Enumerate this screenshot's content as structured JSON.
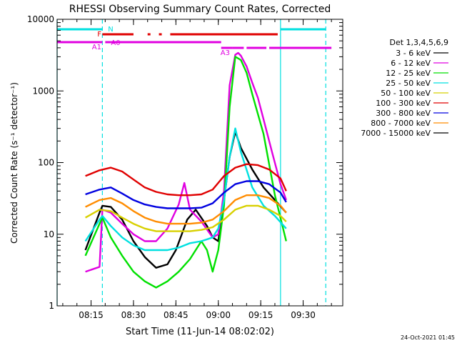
{
  "chart_data": {
    "type": "line",
    "title": "RHESSI Observing Summary Count Rates, Corrected",
    "xlabel": "Start Time (11-Jun-14 08:02:02)",
    "ylabel": "Corrected Count Rate (s⁻¹ detector⁻¹)",
    "timestamp": "24-Oct-2021 01:45",
    "y_scale": "log",
    "xlim": [
      "08:03",
      "09:44"
    ],
    "ylim": [
      1,
      10000
    ],
    "x_ticks": [
      "08:15",
      "08:30",
      "08:45",
      "09:00",
      "09:15",
      "09:30"
    ],
    "y_ticks": [
      "1",
      "10",
      "100",
      "1000",
      "10000"
    ],
    "legend": {
      "header": "Det 1,3,4,5,6,9",
      "placement": "right",
      "entries": [
        {
          "label": "3 - 6 keV",
          "color": "#000000"
        },
        {
          "label": "6 - 12 keV",
          "color": "#e000e0"
        },
        {
          "label": "12 - 25 keV",
          "color": "#00e000"
        },
        {
          "label": "25 - 50 keV",
          "color": "#00e0e0"
        },
        {
          "label": "50 - 100 keV",
          "color": "#d8d000"
        },
        {
          "label": "100 - 300 keV",
          "color": "#e00000"
        },
        {
          "label": "300 - 800 keV",
          "color": "#0000e0"
        },
        {
          "label": "800 - 7000 keV",
          "color": "#ff8c00"
        },
        {
          "label": "7000 - 15000 keV",
          "color": "#000000"
        }
      ]
    },
    "flag_bars": [
      {
        "label": "N",
        "color": "#00e0e0",
        "segments": [
          [
            "08:03",
            "08:19"
          ],
          [
            "09:22",
            "09:38"
          ]
        ]
      },
      {
        "label": "F",
        "color": "#e00000",
        "segments": [
          [
            "08:19",
            "08:30"
          ],
          [
            "08:35",
            "08:36"
          ],
          [
            "08:39",
            "08:40"
          ],
          [
            "08:43",
            "09:21"
          ]
        ]
      },
      {
        "label": "A1",
        "color": "#e000e0",
        "segments": [
          [
            "08:03",
            "08:19"
          ],
          [
            "08:20",
            "08:22"
          ]
        ]
      },
      {
        "label": "A0",
        "color": "#e000e0",
        "segments": [
          [
            "08:22",
            "09:01"
          ]
        ]
      },
      {
        "label": "A3",
        "color": "#e000e0",
        "segments": [
          [
            "09:01",
            "09:05"
          ],
          [
            "09:05",
            "09:09"
          ],
          [
            "09:10",
            "09:17"
          ],
          [
            "09:18",
            "09:40"
          ]
        ]
      }
    ],
    "vlines": [
      {
        "x": "08:03",
        "style": "solid",
        "color": "#00e0e0"
      },
      {
        "x": "08:19",
        "style": "dashed",
        "color": "#00e0e0"
      },
      {
        "x": "09:22",
        "style": "solid",
        "color": "#00e0e0"
      },
      {
        "x": "09:38",
        "style": "dashed",
        "color": "#00e0e0"
      }
    ],
    "series": [
      {
        "name": "3 - 6 keV",
        "color": "#000000",
        "x": [
          "08:13",
          "08:18",
          "08:19",
          "08:22",
          "08:26",
          "08:30",
          "08:34",
          "08:38",
          "08:42",
          "08:45",
          "08:49",
          "08:52",
          "08:56",
          "08:58",
          "09:00",
          "09:02",
          "09:04",
          "09:06",
          "09:08",
          "09:12",
          "09:16",
          "09:20",
          "09:24"
        ],
        "y": [
          6,
          20,
          25,
          24,
          16,
          8,
          4.8,
          3.4,
          3.8,
          6,
          16,
          22,
          13,
          9,
          8,
          30,
          120,
          270,
          160,
          80,
          45,
          30,
          20
        ]
      },
      {
        "name": "6 - 12 keV",
        "color": "#e000e0",
        "x": [
          "08:13",
          "08:18",
          "08:19",
          "08:22",
          "08:26",
          "08:30",
          "08:34",
          "08:38",
          "08:42",
          "08:46",
          "08:48",
          "08:50",
          "08:54",
          "08:58",
          "09:00",
          "09:02",
          "09:04",
          "09:06",
          "09:07",
          "09:08",
          "09:10",
          "09:12",
          "09:14",
          "09:16",
          "09:19",
          "09:22",
          "09:24"
        ],
        "y": [
          3,
          3.5,
          22,
          20,
          14,
          10,
          8,
          8,
          12,
          26,
          52,
          22,
          15,
          9,
          10,
          40,
          1200,
          3200,
          3400,
          3100,
          2200,
          1300,
          800,
          400,
          140,
          50,
          30
        ]
      },
      {
        "name": "12 - 25 keV",
        "color": "#00e000",
        "x": [
          "08:13",
          "08:18",
          "08:19",
          "08:22",
          "08:26",
          "08:30",
          "08:34",
          "08:38",
          "08:42",
          "08:46",
          "08:50",
          "08:54",
          "08:56",
          "08:58",
          "09:00",
          "09:02",
          "09:04",
          "09:06",
          "09:08",
          "09:10",
          "09:12",
          "09:16",
          "09:20",
          "09:24"
        ],
        "y": [
          5,
          14,
          17,
          9,
          5,
          3,
          2.2,
          1.8,
          2.2,
          3,
          4.5,
          8,
          6,
          3,
          6,
          25,
          600,
          3000,
          2700,
          1800,
          900,
          250,
          35,
          8
        ]
      },
      {
        "name": "25 - 50 keV",
        "color": "#00e0e0",
        "x": [
          "08:13",
          "08:18",
          "08:19",
          "08:22",
          "08:26",
          "08:30",
          "08:34",
          "08:38",
          "08:42",
          "08:46",
          "08:50",
          "08:54",
          "08:58",
          "09:00",
          "09:02",
          "09:04",
          "09:06",
          "09:08",
          "09:12",
          "09:16",
          "09:20",
          "09:24"
        ],
        "y": [
          8,
          16,
          18,
          13,
          9,
          7,
          6,
          6,
          6,
          6.5,
          7.5,
          8,
          9,
          12,
          30,
          120,
          300,
          140,
          45,
          25,
          18,
          12
        ]
      },
      {
        "name": "50 - 100 keV",
        "color": "#d8d000",
        "x": [
          "08:13",
          "08:18",
          "08:22",
          "08:26",
          "08:30",
          "08:34",
          "08:38",
          "08:42",
          "08:46",
          "08:50",
          "08:54",
          "08:58",
          "09:02",
          "09:06",
          "09:10",
          "09:14",
          "09:18",
          "09:22",
          "09:24"
        ],
        "y": [
          17,
          22,
          21,
          17,
          14,
          12,
          11,
          11,
          11,
          11,
          11.5,
          12.5,
          16,
          22,
          25,
          25,
          22,
          18,
          15
        ]
      },
      {
        "name": "100 - 300 keV",
        "color": "#e00000",
        "x": [
          "08:13",
          "08:18",
          "08:22",
          "08:26",
          "08:30",
          "08:34",
          "08:38",
          "08:42",
          "08:46",
          "08:50",
          "08:54",
          "08:58",
          "09:02",
          "09:06",
          "09:10",
          "09:14",
          "09:18",
          "09:22",
          "09:24"
        ],
        "y": [
          65,
          78,
          85,
          75,
          58,
          45,
          39,
          36,
          35,
          35,
          36,
          42,
          65,
          85,
          95,
          92,
          80,
          60,
          40
        ]
      },
      {
        "name": "300 - 800 keV",
        "color": "#0000e0",
        "x": [
          "08:13",
          "08:18",
          "08:22",
          "08:26",
          "08:30",
          "08:34",
          "08:38",
          "08:42",
          "08:46",
          "08:50",
          "08:54",
          "08:58",
          "09:02",
          "09:06",
          "09:10",
          "09:14",
          "09:18",
          "09:22",
          "09:24"
        ],
        "y": [
          36,
          42,
          45,
          37,
          30,
          26,
          24,
          23,
          23,
          23,
          23.5,
          27,
          38,
          50,
          55,
          55,
          50,
          38,
          28
        ]
      },
      {
        "name": "800 - 7000 keV",
        "color": "#ff8c00",
        "x": [
          "08:13",
          "08:18",
          "08:22",
          "08:26",
          "08:30",
          "08:34",
          "08:38",
          "08:42",
          "08:46",
          "08:50",
          "08:54",
          "08:58",
          "09:02",
          "09:06",
          "09:10",
          "09:14",
          "09:18",
          "09:22",
          "09:24"
        ],
        "y": [
          24,
          30,
          32,
          27,
          21,
          17,
          15,
          14,
          14,
          14,
          14.5,
          16,
          21,
          30,
          35,
          35,
          32,
          25,
          20
        ]
      }
    ]
  }
}
